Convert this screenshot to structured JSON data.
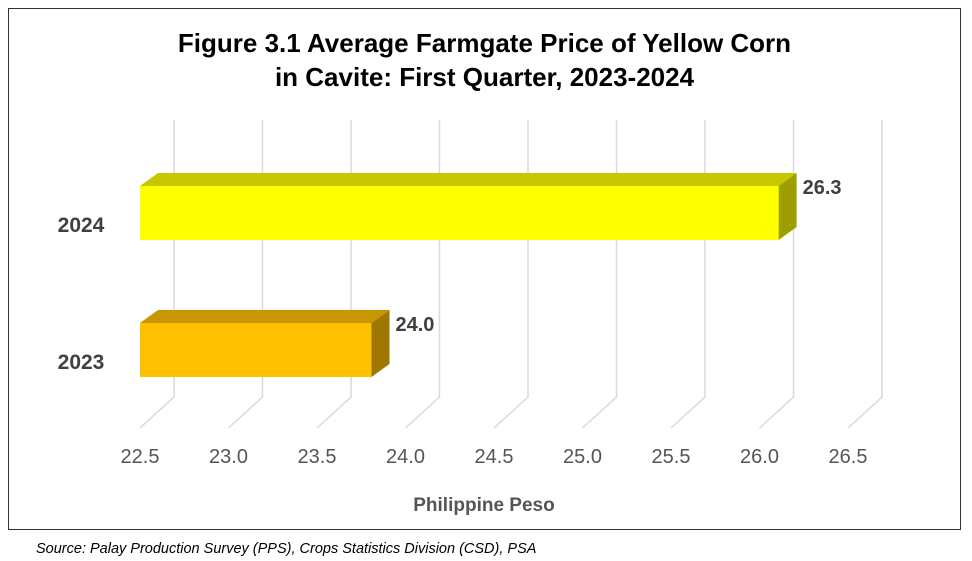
{
  "chart_data": {
    "type": "bar",
    "orientation": "horizontal",
    "style": "3d",
    "title_lines": [
      "Figure 3.1 Average Farmgate Price of Yellow Corn",
      "in Cavite: First Quarter, 2023-2024"
    ],
    "xlabel": "Philippine Peso",
    "ylabel": "",
    "categories": [
      "2024",
      "2023"
    ],
    "values": [
      26.3,
      24.0
    ],
    "data_labels": [
      "26.3",
      "24.0"
    ],
    "bar_colors": [
      "#FFFF00",
      "#FFC000"
    ],
    "xlim": [
      22.5,
      26.5
    ],
    "xticks": [
      "22.5",
      "23.0",
      "23.5",
      "24.0",
      "24.5",
      "25.0",
      "25.5",
      "26.0",
      "26.5"
    ],
    "grid": true
  },
  "source": "Source: Palay Production Survey (PPS), Crops Statistics Division (CSD), PSA"
}
